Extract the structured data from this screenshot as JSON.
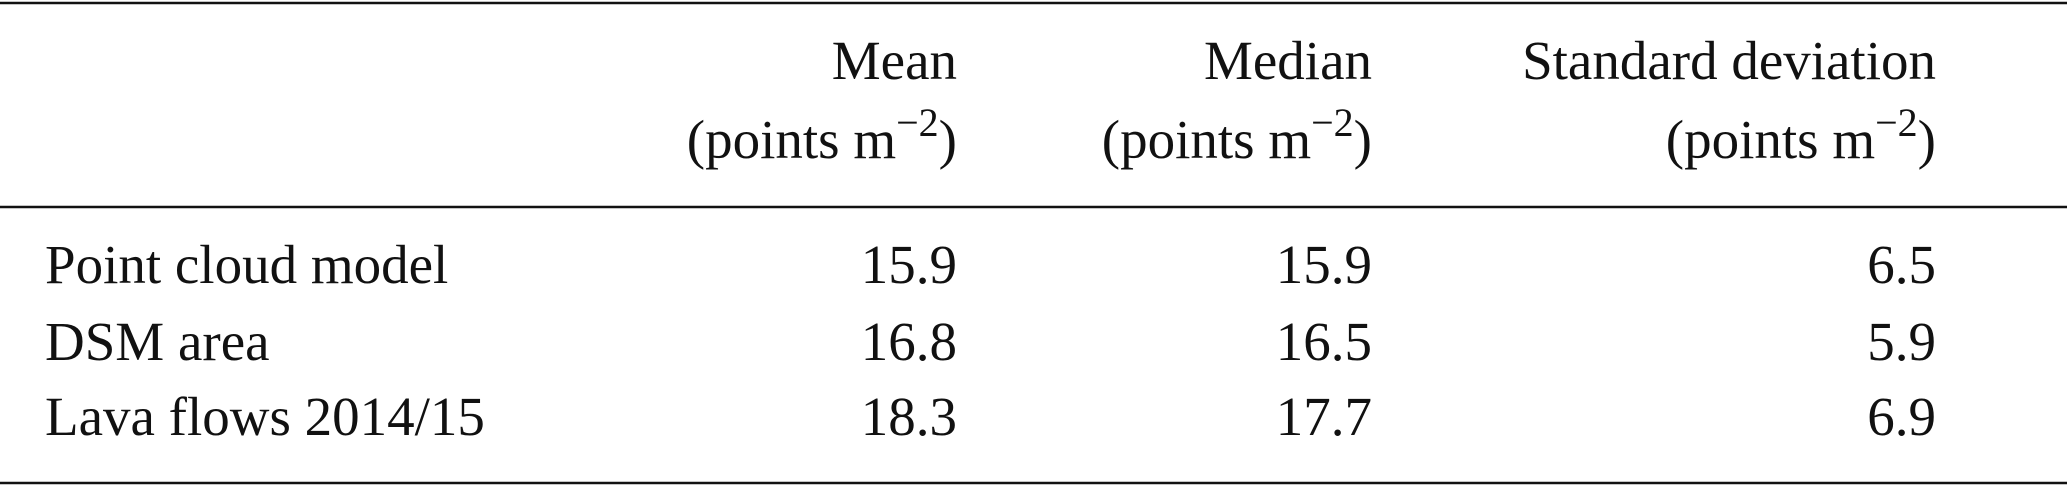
{
  "table": {
    "columns": [
      {
        "name": "Mean",
        "unit": {
          "text": "(points m",
          "sup": "−2",
          "close": ")"
        }
      },
      {
        "name": "Median",
        "unit": {
          "text": "(points m",
          "sup": "−2",
          "close": ")"
        }
      },
      {
        "name": "Standard deviation",
        "unit": {
          "text": "(points m",
          "sup": "−2",
          "close": ")"
        }
      }
    ],
    "rows": [
      [
        "Point cloud model",
        15.9,
        15.9,
        6.5
      ],
      [
        "DSM area",
        16.8,
        16.5,
        5.9
      ],
      [
        "Lava flows 2014/15",
        18.3,
        17.7,
        6.9
      ]
    ]
  }
}
